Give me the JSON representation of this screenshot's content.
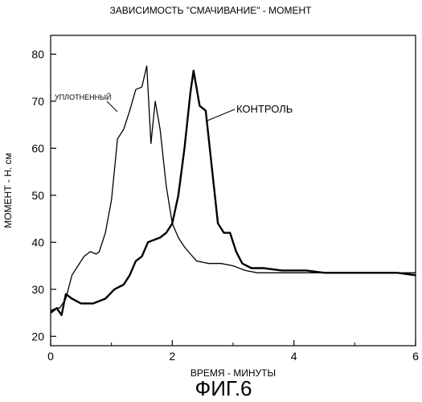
{
  "chart_data": {
    "type": "line",
    "title": "ЗАВИСИМОСТЬ \"СМАЧИВАНИЕ\" - МОМЕНТ",
    "xlabel": "ВРЕМЯ - МИНУТЫ",
    "ylabel": "МОМЕНТ - Н. см",
    "figure_label": "ФИГ.6",
    "xlim": [
      0,
      6
    ],
    "ylim": [
      18,
      84
    ],
    "xticks": [
      0,
      2,
      4,
      6
    ],
    "yticks": [
      20,
      30,
      40,
      50,
      60,
      70,
      80
    ],
    "grid": false,
    "series": [
      {
        "name": "УПЛОТНЕННЫЙ",
        "stroke_width": 1.3,
        "x": [
          0,
          0.1,
          0.15,
          0.25,
          0.35,
          0.45,
          0.55,
          0.65,
          0.75,
          0.8,
          0.9,
          1.0,
          1.1,
          1.2,
          1.3,
          1.4,
          1.5,
          1.58,
          1.65,
          1.72,
          1.8,
          1.9,
          2.0,
          2.1,
          2.2,
          2.3,
          2.4,
          2.6,
          2.8,
          3.0,
          3.2,
          3.4,
          3.6,
          3.8,
          4.0,
          4.4,
          4.8,
          5.2,
          5.6,
          6.0
        ],
        "y": [
          25.5,
          26,
          26,
          28,
          33,
          35,
          37,
          38,
          37.5,
          38,
          42,
          49,
          62,
          64,
          68,
          72.5,
          73,
          77.5,
          61,
          70,
          64,
          52,
          44,
          41,
          39,
          37.5,
          36,
          35.5,
          35.5,
          35,
          34,
          33.5,
          33.5,
          33.5,
          33.5,
          33.5,
          33.5,
          33.5,
          33.5,
          33.5
        ]
      },
      {
        "name": "КОНТРОЛЬ",
        "stroke_width": 2.4,
        "x": [
          0,
          0.1,
          0.18,
          0.25,
          0.35,
          0.5,
          0.7,
          0.9,
          1.05,
          1.2,
          1.3,
          1.4,
          1.5,
          1.6,
          1.7,
          1.8,
          1.9,
          2.0,
          2.1,
          2.2,
          2.3,
          2.35,
          2.45,
          2.55,
          2.65,
          2.75,
          2.85,
          2.95,
          3.05,
          3.15,
          3.3,
          3.5,
          3.8,
          4.0,
          4.2,
          4.5,
          4.8,
          5.1,
          5.4,
          5.7,
          6.0
        ],
        "y": [
          25,
          26,
          24.5,
          29,
          28,
          27,
          27,
          28,
          30,
          31,
          33,
          36,
          37,
          40,
          40.5,
          41,
          42,
          44,
          50,
          60,
          72,
          76.5,
          69,
          68,
          56,
          44,
          42,
          42,
          38,
          35.5,
          34.5,
          34.5,
          34,
          34,
          34,
          33.5,
          33.5,
          33.5,
          33.5,
          33.5,
          33
        ]
      }
    ],
    "annotations": [
      {
        "text": "УПЛОТНЕННЫЙ"
      },
      {
        "text": "КОНТРОЛЬ"
      }
    ]
  }
}
